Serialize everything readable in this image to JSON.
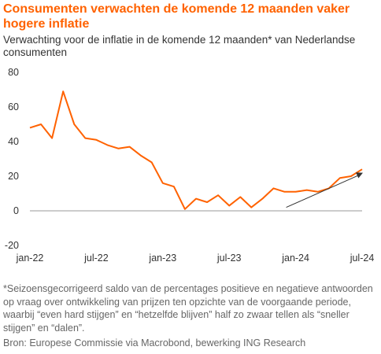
{
  "chart_data": {
    "type": "line",
    "title": "Consumenten verwachten de komende 12 maanden vaker hogere inflatie",
    "subtitle": "Verwachting voor de inflatie in de komende 12 maanden* van Nederlandse consumenten",
    "footnote": "*Seizoensgecorrigeerd saldo van de percentages positieve en negatieve antwoorden op vraag over ontwikkeling van prijzen ten opzichte van de voorgaande periode, waarbij “even hard stijgen” en “hetzelfde blijven”  half zo zwaar tellen als “sneller stijgen” en “dalen”.",
    "source": "Bron: Europese Commissie via Macrobond, bewerking ING Research",
    "ylim": [
      -20,
      80
    ],
    "yticks": [
      -20,
      0,
      20,
      40,
      60,
      80
    ],
    "xticks": [
      "jan-22",
      "jul-22",
      "jan-23",
      "jul-23",
      "jan-24",
      "jul-24"
    ],
    "x": [
      "2022-01",
      "2022-02",
      "2022-03",
      "2022-04",
      "2022-05",
      "2022-06",
      "2022-07",
      "2022-08",
      "2022-09",
      "2022-10",
      "2022-11",
      "2022-12",
      "2023-01",
      "2023-02",
      "2023-03",
      "2023-04",
      "2023-05",
      "2023-06",
      "2023-07",
      "2023-08",
      "2023-09",
      "2023-10",
      "2023-11",
      "2023-12",
      "2024-01",
      "2024-02",
      "2024-03",
      "2024-04",
      "2024-05",
      "2024-06",
      "2024-07"
    ],
    "series": [
      {
        "values": [
          48,
          50,
          42,
          69,
          50,
          42,
          41,
          38,
          36,
          37,
          32,
          28,
          16,
          14,
          1,
          7,
          5,
          9,
          3,
          8,
          2,
          7,
          13,
          11,
          11,
          12,
          11,
          13,
          19,
          20,
          24
        ],
        "color": "#ff6200"
      }
    ],
    "grid": false,
    "annotation": "arrow pointing up-right from 2024-01 to 2024-07"
  }
}
